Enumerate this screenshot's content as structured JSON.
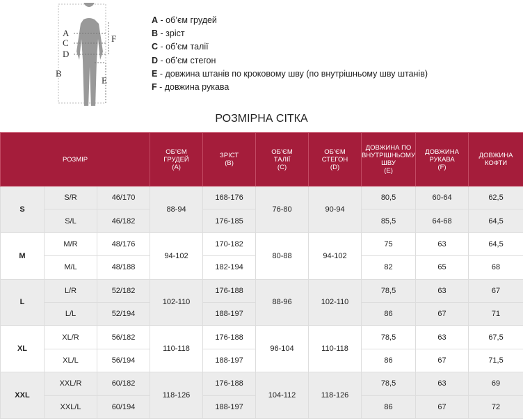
{
  "figure": {
    "labels": [
      "A",
      "C",
      "D",
      "B",
      "F",
      "E"
    ]
  },
  "legend": [
    {
      "letter": "A",
      "text": "- об’єм грудей"
    },
    {
      "letter": "B",
      "text": "- зріст"
    },
    {
      "letter": "C",
      "text": "- об’єм талії"
    },
    {
      "letter": "D",
      "text": "- об’єм стегон"
    },
    {
      "letter": "E",
      "text": "- довжина штанів по кроковому шву (по внутрішньому шву штанів)"
    },
    {
      "letter": "F",
      "text": "- довжина рукава"
    }
  ],
  "title": "РОЗМІРНА СІТКА",
  "table": {
    "header": [
      [
        "РОЗМІР"
      ],
      [
        "ОБ’ЄМ",
        "ГРУДЕЙ",
        "(A)"
      ],
      [
        "ЗРІСТ",
        "(B)"
      ],
      [
        "ОБ’ЄМ",
        "ТАЛІЇ",
        "(C)"
      ],
      [
        "ОБ’ЄМ",
        "СТЕГОН",
        "(D)"
      ],
      [
        "ДОВЖИНА ПО",
        "ВНУТРІШНЬОМУ",
        "ШВУ",
        "(E)"
      ],
      [
        "ДОВЖИНА",
        "РУКАВА",
        "(F)"
      ],
      [
        "ДОВЖИНА",
        "КОФТИ"
      ]
    ],
    "groups": [
      {
        "size": "S",
        "chest": "88-94",
        "waist": "76-80",
        "hips": "90-94",
        "rows": [
          {
            "code": "S/R",
            "num": "46/170",
            "height": "168-176",
            "inseam": "80,5",
            "sleeve": "60-64",
            "jacket": "62,5"
          },
          {
            "code": "S/L",
            "num": "46/182",
            "height": "176-185",
            "inseam": "85,5",
            "sleeve": "64-68",
            "jacket": "64,5"
          }
        ]
      },
      {
        "size": "M",
        "chest": "94-102",
        "waist": "80-88",
        "hips": "94-102",
        "rows": [
          {
            "code": "M/R",
            "num": "48/176",
            "height": "170-182",
            "inseam": "75",
            "sleeve": "63",
            "jacket": "64,5"
          },
          {
            "code": "M/L",
            "num": "48/188",
            "height": "182-194",
            "inseam": "82",
            "sleeve": "65",
            "jacket": "68"
          }
        ]
      },
      {
        "size": "L",
        "chest": "102-110",
        "waist": "88-96",
        "hips": "102-110",
        "rows": [
          {
            "code": "L/R",
            "num": "52/182",
            "height": "176-188",
            "inseam": "78,5",
            "sleeve": "63",
            "jacket": "67"
          },
          {
            "code": "L/L",
            "num": "52/194",
            "height": "188-197",
            "inseam": "86",
            "sleeve": "67",
            "jacket": "71"
          }
        ]
      },
      {
        "size": "XL",
        "chest": "110-118",
        "waist": "96-104",
        "hips": "110-118",
        "rows": [
          {
            "code": "XL/R",
            "num": "56/182",
            "height": "176-188",
            "inseam": "78,5",
            "sleeve": "63",
            "jacket": "67,5"
          },
          {
            "code": "XL/L",
            "num": "56/194",
            "height": "188-197",
            "inseam": "86",
            "sleeve": "67",
            "jacket": "71,5"
          }
        ]
      },
      {
        "size": "XXL",
        "chest": "118-126",
        "waist": "104-112",
        "hips": "118-126",
        "rows": [
          {
            "code": "XXL/R",
            "num": "60/182",
            "height": "176-188",
            "inseam": "78,5",
            "sleeve": "63",
            "jacket": "69"
          },
          {
            "code": "XXL/L",
            "num": "60/194",
            "height": "188-197",
            "inseam": "86",
            "sleeve": "67",
            "jacket": "72"
          }
        ]
      }
    ]
  }
}
